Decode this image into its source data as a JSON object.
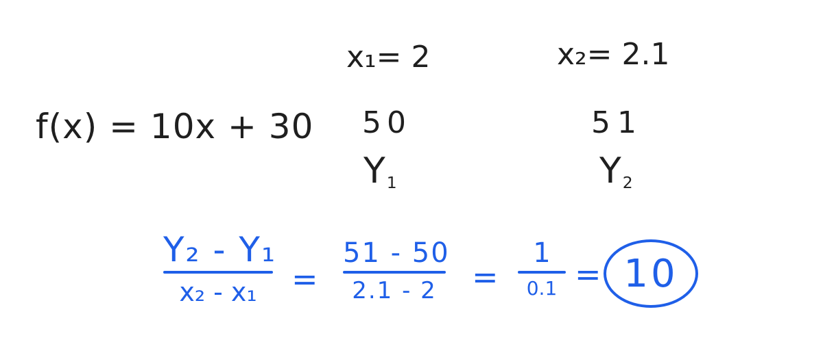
{
  "top_row": {
    "x1": "x₁= 2",
    "x2": "x₂= 2.1"
  },
  "function": {
    "expression": "f(x) = 10x + 30",
    "y1_value": "50",
    "y2_value": "51"
  },
  "y_labels": {
    "y1": "Y",
    "y1_sub": "1",
    "y2": "Y",
    "y2_sub": "2"
  },
  "slope_calc": {
    "formula_numerator": "Y₂ - Y₁",
    "formula_denominator": "x₂ - x₁",
    "equals": "=",
    "sub_numerator": "51 - 50",
    "sub_denominator": "2.1 - 2",
    "simplified_numerator": "1",
    "simplified_denominator": "0.1",
    "result": "10"
  },
  "colors": {
    "dark_ink": "#1f1f1f",
    "blue_ink": "#1f5fe8"
  }
}
